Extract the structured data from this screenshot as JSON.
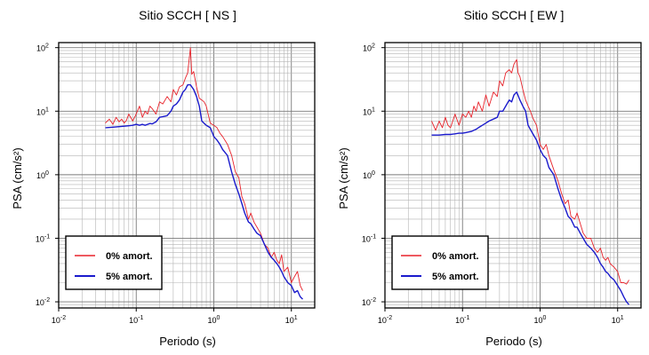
{
  "chart_data": [
    {
      "type": "line",
      "title": "Sitio SCCH [ NS ]",
      "xlabel": "Periodo (s)",
      "ylabel": "PSA (cm/s²)",
      "xscale": "log",
      "yscale": "log",
      "xlim": [
        0.01,
        20
      ],
      "ylim": [
        0.008,
        120
      ],
      "grid": true,
      "legend_position": "bottom-left",
      "x_ticks": [
        {
          "base": "10",
          "exp": "-2"
        },
        {
          "base": "10",
          "exp": "-1"
        },
        {
          "base": "10",
          "exp": "0"
        },
        {
          "base": "10",
          "exp": "1"
        }
      ],
      "y_ticks": [
        {
          "base": "10",
          "exp": "-2"
        },
        {
          "base": "10",
          "exp": "-1"
        },
        {
          "base": "10",
          "exp": "0"
        },
        {
          "base": "10",
          "exp": "1"
        },
        {
          "base": "10",
          "exp": "2"
        }
      ],
      "series": [
        {
          "name": "0% amort.",
          "color": "#e8222a",
          "x": [
            0.04,
            0.045,
            0.05,
            0.055,
            0.06,
            0.065,
            0.07,
            0.075,
            0.08,
            0.09,
            0.1,
            0.11,
            0.12,
            0.13,
            0.14,
            0.15,
            0.16,
            0.18,
            0.2,
            0.22,
            0.25,
            0.28,
            0.3,
            0.33,
            0.36,
            0.4,
            0.43,
            0.46,
            0.5,
            0.52,
            0.55,
            0.6,
            0.65,
            0.7,
            0.75,
            0.8,
            0.9,
            1.0,
            1.1,
            1.2,
            1.3,
            1.5,
            1.7,
            1.9,
            2.1,
            2.3,
            2.5,
            2.8,
            3.0,
            3.3,
            3.6,
            4.0,
            4.5,
            5.0,
            5.5,
            6.0,
            6.5,
            7.0,
            7.5,
            8.0,
            9.0,
            10.0,
            11.0,
            12.0,
            13.0,
            14.0
          ],
          "y": [
            6.5,
            7.5,
            6.2,
            8,
            6.8,
            7.5,
            6.5,
            7.2,
            9,
            7,
            9,
            12,
            8,
            10,
            9,
            12,
            11,
            9,
            14,
            13,
            17,
            14,
            22,
            18,
            24,
            26,
            33,
            40,
            100,
            38,
            42,
            24,
            16,
            15,
            14,
            12,
            6.5,
            6,
            5.5,
            4.5,
            4,
            3,
            2,
            1.1,
            0.9,
            0.45,
            0.35,
            0.2,
            0.25,
            0.18,
            0.15,
            0.12,
            0.08,
            0.07,
            0.05,
            0.06,
            0.045,
            0.04,
            0.055,
            0.03,
            0.035,
            0.02,
            0.025,
            0.03,
            0.018,
            0.015
          ]
        },
        {
          "name": "5% amort.",
          "color": "#1a1acc",
          "x": [
            0.04,
            0.05,
            0.06,
            0.07,
            0.08,
            0.09,
            0.1,
            0.11,
            0.12,
            0.13,
            0.14,
            0.15,
            0.16,
            0.18,
            0.2,
            0.22,
            0.25,
            0.28,
            0.3,
            0.33,
            0.36,
            0.4,
            0.43,
            0.46,
            0.5,
            0.55,
            0.6,
            0.65,
            0.7,
            0.8,
            0.9,
            1.0,
            1.1,
            1.2,
            1.3,
            1.5,
            1.7,
            1.9,
            2.1,
            2.3,
            2.5,
            2.8,
            3.0,
            3.3,
            3.6,
            4.0,
            4.5,
            5.0,
            5.5,
            6.0,
            6.5,
            7.0,
            7.5,
            8.0,
            9.0,
            10.0,
            11.0,
            12.0,
            13.0,
            14.0
          ],
          "y": [
            5.5,
            5.6,
            5.7,
            5.8,
            5.9,
            6.0,
            6.2,
            6.0,
            6.2,
            6.0,
            6.2,
            6.4,
            6.3,
            6.8,
            8.0,
            8.2,
            8.5,
            10,
            12,
            13,
            15,
            20,
            22,
            26,
            26,
            22,
            17,
            12,
            7,
            6,
            5.5,
            4,
            3.5,
            3,
            2.5,
            2,
            1.1,
            0.7,
            0.5,
            0.35,
            0.25,
            0.18,
            0.17,
            0.14,
            0.12,
            0.11,
            0.08,
            0.06,
            0.05,
            0.045,
            0.04,
            0.035,
            0.03,
            0.025,
            0.02,
            0.018,
            0.014,
            0.015,
            0.012,
            0.011
          ]
        }
      ]
    },
    {
      "type": "line",
      "title": "Sitio SCCH [ EW ]",
      "xlabel": "Periodo (s)",
      "ylabel": "PSA (cm/s²)",
      "xscale": "log",
      "yscale": "log",
      "xlim": [
        0.01,
        20
      ],
      "ylim": [
        0.008,
        120
      ],
      "grid": true,
      "legend_position": "bottom-left",
      "x_ticks": [
        {
          "base": "10",
          "exp": "-2"
        },
        {
          "base": "10",
          "exp": "-1"
        },
        {
          "base": "10",
          "exp": "0"
        },
        {
          "base": "10",
          "exp": "1"
        }
      ],
      "y_ticks": [
        {
          "base": "10",
          "exp": "-2"
        },
        {
          "base": "10",
          "exp": "-1"
        },
        {
          "base": "10",
          "exp": "0"
        },
        {
          "base": "10",
          "exp": "1"
        },
        {
          "base": "10",
          "exp": "2"
        }
      ],
      "series": [
        {
          "name": "0% amort.",
          "color": "#e8222a",
          "x": [
            0.04,
            0.045,
            0.05,
            0.055,
            0.06,
            0.065,
            0.07,
            0.075,
            0.08,
            0.09,
            0.1,
            0.11,
            0.12,
            0.13,
            0.14,
            0.15,
            0.16,
            0.18,
            0.2,
            0.22,
            0.25,
            0.28,
            0.3,
            0.33,
            0.36,
            0.4,
            0.43,
            0.46,
            0.5,
            0.52,
            0.55,
            0.6,
            0.65,
            0.7,
            0.75,
            0.8,
            0.9,
            1.0,
            1.1,
            1.2,
            1.3,
            1.5,
            1.7,
            1.9,
            2.1,
            2.3,
            2.5,
            2.8,
            3.0,
            3.3,
            3.6,
            4.0,
            4.5,
            5.0,
            5.5,
            6.0,
            6.5,
            7.0,
            7.5,
            8.0,
            9.0,
            10.0,
            11.0,
            12.0,
            13.0,
            14.0
          ],
          "y": [
            7,
            5,
            7,
            5.5,
            8,
            6,
            5.5,
            7,
            9,
            6,
            9,
            8,
            10,
            8,
            12,
            10,
            14,
            10,
            18,
            12,
            20,
            17,
            30,
            25,
            40,
            45,
            40,
            55,
            65,
            40,
            35,
            22,
            15,
            12,
            10,
            8,
            6,
            3,
            2.5,
            3,
            2,
            1.2,
            0.8,
            0.5,
            0.35,
            0.4,
            0.22,
            0.2,
            0.25,
            0.17,
            0.12,
            0.1,
            0.1,
            0.07,
            0.06,
            0.07,
            0.05,
            0.045,
            0.05,
            0.04,
            0.035,
            0.03,
            0.02,
            0.02,
            0.019,
            0.022
          ]
        },
        {
          "name": "5% amort.",
          "color": "#1a1acc",
          "x": [
            0.04,
            0.05,
            0.06,
            0.07,
            0.08,
            0.09,
            0.1,
            0.11,
            0.12,
            0.13,
            0.14,
            0.15,
            0.16,
            0.18,
            0.2,
            0.22,
            0.25,
            0.28,
            0.3,
            0.33,
            0.36,
            0.4,
            0.43,
            0.46,
            0.5,
            0.55,
            0.6,
            0.65,
            0.7,
            0.8,
            0.9,
            1.0,
            1.1,
            1.2,
            1.3,
            1.5,
            1.7,
            1.9,
            2.1,
            2.3,
            2.5,
            2.8,
            3.0,
            3.3,
            3.6,
            4.0,
            4.5,
            5.0,
            5.5,
            6.0,
            6.5,
            7.0,
            7.5,
            8.0,
            9.0,
            10.0,
            11.0,
            12.0,
            13.0,
            14.0
          ],
          "y": [
            4.2,
            4.2,
            4.3,
            4.3,
            4.4,
            4.5,
            4.5,
            4.6,
            4.7,
            4.8,
            5,
            5.2,
            5.5,
            6,
            6.5,
            7,
            7.5,
            8,
            10,
            10,
            12,
            15,
            14,
            18,
            20,
            15,
            12,
            10,
            6,
            4.5,
            3.5,
            2.5,
            2,
            1.8,
            1.3,
            1,
            0.6,
            0.4,
            0.3,
            0.22,
            0.2,
            0.15,
            0.15,
            0.12,
            0.1,
            0.08,
            0.07,
            0.06,
            0.05,
            0.04,
            0.035,
            0.03,
            0.028,
            0.025,
            0.022,
            0.018,
            0.015,
            0.012,
            0.01,
            0.009
          ]
        }
      ]
    }
  ]
}
